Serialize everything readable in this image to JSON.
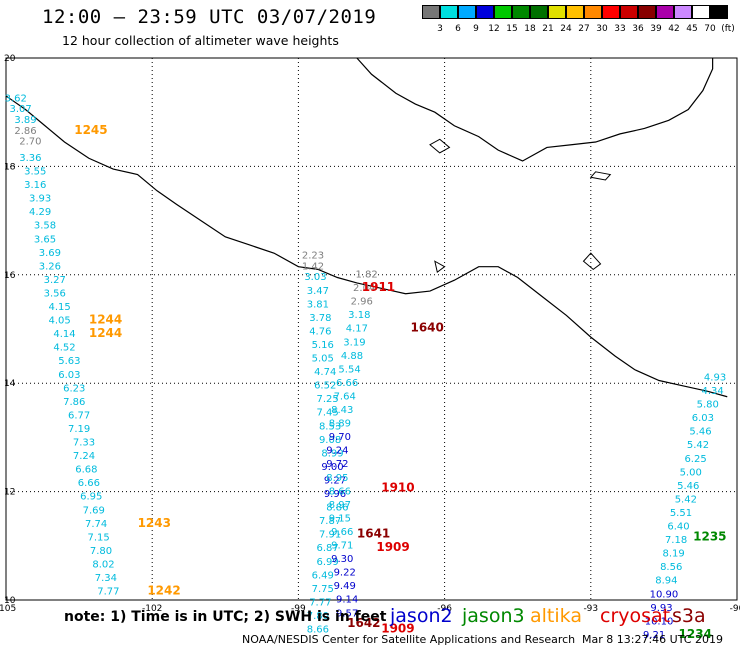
{
  "title": "12:00 — 23:59 UTC 03/07/2019",
  "subtitle": "12 hour collection of altimeter wave heights",
  "color_scale": {
    "labels": [
      "3",
      "6",
      "9",
      "12",
      "15",
      "18",
      "21",
      "24",
      "27",
      "30",
      "33",
      "36",
      "39",
      "42",
      "45",
      "70",
      "(ft)"
    ],
    "colors": [
      "#777777",
      "#00e0e0",
      "#00aaff",
      "#0000dd",
      "#00c800",
      "#008800",
      "#007000",
      "#e0e000",
      "#ffc000",
      "#ff8800",
      "#ff0000",
      "#cc0000",
      "#880000",
      "#aa00aa",
      "#cc88ff",
      "#ffffff",
      "#000000"
    ]
  },
  "note": "note:  1) Time is in UTC;  2) SWH is in feet",
  "legend": [
    {
      "label": "jason2",
      "color": "#0000cc"
    },
    {
      "label": "jason3",
      "color": "#008800"
    },
    {
      "label": "altika",
      "color": "#ff9900"
    },
    {
      "label": "cryosat",
      "color": "#dd0000"
    },
    {
      "label": "s3a",
      "color": "#8b0000"
    }
  ],
  "credit": "NOAA/NESDIS Center for Satellite Applications and Research",
  "credit_time": "Mar  8 13:27:46 UTC 2019",
  "map": {
    "lon_range": [
      -105,
      -90
    ],
    "lat_range": [
      10,
      20
    ],
    "lon_ticks": [
      "-105",
      "-102",
      "-99",
      "-96",
      "-93",
      "-90"
    ],
    "lat_ticks": [
      "20",
      "18",
      "16",
      "14",
      "12",
      "10"
    ],
    "colors": {
      "sky": "#00bbdd",
      "gray": "#808080",
      "blue": "#0000cc",
      "orange": "#ff9900",
      "red": "#dd0000",
      "darkred": "#8b0000",
      "green": "#008800"
    },
    "observations": [
      {
        "lon": -104.8,
        "lat": 19.2,
        "v": "3.62",
        "c": "sky"
      },
      {
        "lon": -104.7,
        "lat": 19.0,
        "v": "3.07",
        "c": "sky"
      },
      {
        "lon": -104.6,
        "lat": 18.8,
        "v": "3.89",
        "c": "sky"
      },
      {
        "lon": -104.6,
        "lat": 18.6,
        "v": "2.86",
        "c": "gray"
      },
      {
        "lon": -104.5,
        "lat": 18.4,
        "v": "2.70",
        "c": "gray"
      },
      {
        "lon": -104.5,
        "lat": 18.1,
        "v": "3.36",
        "c": "sky"
      },
      {
        "lon": -104.4,
        "lat": 17.85,
        "v": "3.55",
        "c": "sky"
      },
      {
        "lon": -104.4,
        "lat": 17.6,
        "v": "3.16",
        "c": "sky"
      },
      {
        "lon": -104.3,
        "lat": 17.35,
        "v": "3.93",
        "c": "sky"
      },
      {
        "lon": -104.3,
        "lat": 17.1,
        "v": "4.29",
        "c": "sky"
      },
      {
        "lon": -104.2,
        "lat": 16.85,
        "v": "3.58",
        "c": "sky"
      },
      {
        "lon": -104.2,
        "lat": 16.6,
        "v": "3.65",
        "c": "sky"
      },
      {
        "lon": -104.1,
        "lat": 16.35,
        "v": "3.69",
        "c": "sky"
      },
      {
        "lon": -104.1,
        "lat": 16.1,
        "v": "3.26",
        "c": "sky"
      },
      {
        "lon": -104.0,
        "lat": 15.85,
        "v": "3.27",
        "c": "sky"
      },
      {
        "lon": -104.0,
        "lat": 15.6,
        "v": "3.56",
        "c": "sky"
      },
      {
        "lon": -103.9,
        "lat": 15.35,
        "v": "4.15",
        "c": "sky"
      },
      {
        "lon": -103.9,
        "lat": 15.1,
        "v": "4.05",
        "c": "sky"
      },
      {
        "lon": -103.8,
        "lat": 14.85,
        "v": "4.14",
        "c": "sky"
      },
      {
        "lon": -103.8,
        "lat": 14.6,
        "v": "4.52",
        "c": "sky"
      },
      {
        "lon": -103.7,
        "lat": 14.35,
        "v": "5.63",
        "c": "sky"
      },
      {
        "lon": -103.7,
        "lat": 14.1,
        "v": "6.03",
        "c": "sky"
      },
      {
        "lon": -103.6,
        "lat": 13.85,
        "v": "6.23",
        "c": "sky"
      },
      {
        "lon": -103.6,
        "lat": 13.6,
        "v": "7.86",
        "c": "sky"
      },
      {
        "lon": -103.5,
        "lat": 13.35,
        "v": "6.77",
        "c": "sky"
      },
      {
        "lon": -103.5,
        "lat": 13.1,
        "v": "7.19",
        "c": "sky"
      },
      {
        "lon": -103.4,
        "lat": 12.85,
        "v": "7.33",
        "c": "sky"
      },
      {
        "lon": -103.4,
        "lat": 12.6,
        "v": "7.24",
        "c": "sky"
      },
      {
        "lon": -103.35,
        "lat": 12.35,
        "v": "6.68",
        "c": "sky"
      },
      {
        "lon": -103.3,
        "lat": 12.1,
        "v": "6.66",
        "c": "sky"
      },
      {
        "lon": -103.25,
        "lat": 11.85,
        "v": "6.95",
        "c": "sky"
      },
      {
        "lon": -103.2,
        "lat": 11.6,
        "v": "7.69",
        "c": "sky"
      },
      {
        "lon": -103.15,
        "lat": 11.35,
        "v": "7.74",
        "c": "sky"
      },
      {
        "lon": -103.1,
        "lat": 11.1,
        "v": "7.15",
        "c": "sky"
      },
      {
        "lon": -103.05,
        "lat": 10.85,
        "v": "7.80",
        "c": "sky"
      },
      {
        "lon": -103.0,
        "lat": 10.6,
        "v": "8.02",
        "c": "sky"
      },
      {
        "lon": -102.95,
        "lat": 10.35,
        "v": "7.34",
        "c": "sky"
      },
      {
        "lon": -102.9,
        "lat": 10.1,
        "v": "7.77",
        "c": "sky"
      },
      {
        "lon": -98.7,
        "lat": 16.3,
        "v": "2.23",
        "c": "gray"
      },
      {
        "lon": -98.7,
        "lat": 16.1,
        "v": "1.42",
        "c": "gray"
      },
      {
        "lon": -98.65,
        "lat": 15.9,
        "v": "3.03",
        "c": "sky"
      },
      {
        "lon": -98.6,
        "lat": 15.65,
        "v": "3.47",
        "c": "sky"
      },
      {
        "lon": -98.6,
        "lat": 15.4,
        "v": "3.81",
        "c": "sky"
      },
      {
        "lon": -98.55,
        "lat": 15.15,
        "v": "3.78",
        "c": "sky"
      },
      {
        "lon": -98.55,
        "lat": 14.9,
        "v": "4.76",
        "c": "sky"
      },
      {
        "lon": -98.5,
        "lat": 14.65,
        "v": "5.16",
        "c": "sky"
      },
      {
        "lon": -98.5,
        "lat": 14.4,
        "v": "5.05",
        "c": "sky"
      },
      {
        "lon": -98.45,
        "lat": 14.15,
        "v": "4.74",
        "c": "sky"
      },
      {
        "lon": -98.45,
        "lat": 13.9,
        "v": "6.52",
        "c": "sky"
      },
      {
        "lon": -98.4,
        "lat": 13.65,
        "v": "7.25",
        "c": "sky"
      },
      {
        "lon": -98.4,
        "lat": 13.4,
        "v": "7.45",
        "c": "sky"
      },
      {
        "lon": -98.35,
        "lat": 13.15,
        "v": "8.53",
        "c": "sky"
      },
      {
        "lon": -98.35,
        "lat": 12.9,
        "v": "9.08",
        "c": "sky"
      },
      {
        "lon": -98.3,
        "lat": 12.65,
        "v": "8.99",
        "c": "sky"
      },
      {
        "lon": -98.3,
        "lat": 12.4,
        "v": "9.00",
        "c": "blue"
      },
      {
        "lon": -98.25,
        "lat": 12.15,
        "v": "9.27",
        "c": "blue"
      },
      {
        "lon": -98.25,
        "lat": 11.9,
        "v": "9.96",
        "c": "blue"
      },
      {
        "lon": -98.2,
        "lat": 11.65,
        "v": "8.86",
        "c": "sky"
      },
      {
        "lon": -98.35,
        "lat": 11.4,
        "v": "7.87",
        "c": "sky"
      },
      {
        "lon": -98.35,
        "lat": 11.15,
        "v": "7.91",
        "c": "sky"
      },
      {
        "lon": -98.4,
        "lat": 10.9,
        "v": "6.87",
        "c": "sky"
      },
      {
        "lon": -98.4,
        "lat": 10.65,
        "v": "6.99",
        "c": "sky"
      },
      {
        "lon": -98.5,
        "lat": 10.4,
        "v": "6.49",
        "c": "sky"
      },
      {
        "lon": -98.5,
        "lat": 10.15,
        "v": "7.75",
        "c": "sky"
      },
      {
        "lon": -98.55,
        "lat": 9.9,
        "v": "7.77",
        "c": "sky"
      },
      {
        "lon": -98.6,
        "lat": 9.65,
        "v": "7.80",
        "c": "sky"
      },
      {
        "lon": -98.6,
        "lat": 9.4,
        "v": "8.66",
        "c": "sky"
      },
      {
        "lon": -97.6,
        "lat": 15.95,
        "v": "1.82",
        "c": "gray"
      },
      {
        "lon": -97.65,
        "lat": 15.7,
        "v": "2.04",
        "c": "gray"
      },
      {
        "lon": -97.7,
        "lat": 15.45,
        "v": "2.96",
        "c": "gray"
      },
      {
        "lon": -97.75,
        "lat": 15.2,
        "v": "3.18",
        "c": "sky"
      },
      {
        "lon": -97.8,
        "lat": 14.95,
        "v": "4.17",
        "c": "sky"
      },
      {
        "lon": -97.85,
        "lat": 14.7,
        "v": "3.19",
        "c": "sky"
      },
      {
        "lon": -97.9,
        "lat": 14.45,
        "v": "4.88",
        "c": "sky"
      },
      {
        "lon": -97.95,
        "lat": 14.2,
        "v": "5.54",
        "c": "sky"
      },
      {
        "lon": -98.0,
        "lat": 13.95,
        "v": "6.66",
        "c": "sky"
      },
      {
        "lon": -98.05,
        "lat": 13.7,
        "v": "7.64",
        "c": "sky"
      },
      {
        "lon": -98.1,
        "lat": 13.45,
        "v": "8.43",
        "c": "sky"
      },
      {
        "lon": -98.15,
        "lat": 13.2,
        "v": "8.89",
        "c": "sky"
      },
      {
        "lon": -98.15,
        "lat": 12.95,
        "v": "9.70",
        "c": "blue"
      },
      {
        "lon": -98.2,
        "lat": 12.7,
        "v": "9.24",
        "c": "blue"
      },
      {
        "lon": -98.2,
        "lat": 12.45,
        "v": "9.72",
        "c": "blue"
      },
      {
        "lon": -98.2,
        "lat": 12.2,
        "v": "8.95",
        "c": "sky"
      },
      {
        "lon": -98.15,
        "lat": 11.95,
        "v": "8.66",
        "c": "sky"
      },
      {
        "lon": -98.15,
        "lat": 11.7,
        "v": "8.97",
        "c": "sky"
      },
      {
        "lon": -98.15,
        "lat": 11.45,
        "v": "9.15",
        "c": "sky"
      },
      {
        "lon": -98.1,
        "lat": 11.2,
        "v": "9.66",
        "c": "sky"
      },
      {
        "lon": -98.1,
        "lat": 10.95,
        "v": "9.71",
        "c": "sky"
      },
      {
        "lon": -98.1,
        "lat": 10.7,
        "v": "9.30",
        "c": "blue"
      },
      {
        "lon": -98.05,
        "lat": 10.45,
        "v": "9.22",
        "c": "blue"
      },
      {
        "lon": -98.05,
        "lat": 10.2,
        "v": "9.49",
        "c": "blue"
      },
      {
        "lon": -98.0,
        "lat": 9.95,
        "v": "9.14",
        "c": "blue"
      },
      {
        "lon": -98.0,
        "lat": 9.7,
        "v": "9.57",
        "c": "blue"
      },
      {
        "lon": -90.45,
        "lat": 14.05,
        "v": "4.93",
        "c": "sky"
      },
      {
        "lon": -90.5,
        "lat": 13.8,
        "v": "4.34",
        "c": "sky"
      },
      {
        "lon": -90.6,
        "lat": 13.55,
        "v": "5.80",
        "c": "sky"
      },
      {
        "lon": -90.7,
        "lat": 13.3,
        "v": "6.03",
        "c": "sky"
      },
      {
        "lon": -90.75,
        "lat": 13.05,
        "v": "5.46",
        "c": "sky"
      },
      {
        "lon": -90.8,
        "lat": 12.8,
        "v": "5.42",
        "c": "sky"
      },
      {
        "lon": -90.85,
        "lat": 12.55,
        "v": "6.25",
        "c": "sky"
      },
      {
        "lon": -90.95,
        "lat": 12.3,
        "v": "5.00",
        "c": "sky"
      },
      {
        "lon": -91.0,
        "lat": 12.05,
        "v": "5.46",
        "c": "sky"
      },
      {
        "lon": -91.05,
        "lat": 11.8,
        "v": "5.42",
        "c": "sky"
      },
      {
        "lon": -91.15,
        "lat": 11.55,
        "v": "5.51",
        "c": "sky"
      },
      {
        "lon": -91.2,
        "lat": 11.3,
        "v": "6.40",
        "c": "sky"
      },
      {
        "lon": -91.25,
        "lat": 11.05,
        "v": "7.18",
        "c": "sky"
      },
      {
        "lon": -91.3,
        "lat": 10.8,
        "v": "8.19",
        "c": "sky"
      },
      {
        "lon": -91.35,
        "lat": 10.55,
        "v": "8.56",
        "c": "sky"
      },
      {
        "lon": -91.45,
        "lat": 10.3,
        "v": "8.94",
        "c": "sky"
      },
      {
        "lon": -91.5,
        "lat": 10.05,
        "v": "10.90",
        "c": "blue"
      },
      {
        "lon": -91.55,
        "lat": 9.8,
        "v": "9.93",
        "c": "blue"
      },
      {
        "lon": -91.6,
        "lat": 9.55,
        "v": "10.10",
        "c": "blue"
      },
      {
        "lon": -91.7,
        "lat": 9.3,
        "v": "9.21",
        "c": "blue"
      }
    ],
    "times": [
      {
        "lon": -103.6,
        "lat": 18.6,
        "v": "1245",
        "c": "orange"
      },
      {
        "lon": -103.3,
        "lat": 15.1,
        "v": "1244",
        "c": "orange"
      },
      {
        "lon": -103.3,
        "lat": 14.85,
        "v": "1244",
        "c": "orange"
      },
      {
        "lon": -102.3,
        "lat": 11.35,
        "v": "1243",
        "c": "orange"
      },
      {
        "lon": -102.1,
        "lat": 10.1,
        "v": "1242",
        "c": "orange"
      },
      {
        "lon": -97.7,
        "lat": 15.7,
        "v": "1911",
        "c": "red"
      },
      {
        "lon": -96.7,
        "lat": 14.95,
        "v": "1640",
        "c": "darkred"
      },
      {
        "lon": -97.3,
        "lat": 12.0,
        "v": "1910",
        "c": "red"
      },
      {
        "lon": -97.8,
        "lat": 11.15,
        "v": "1641",
        "c": "darkred"
      },
      {
        "lon": -97.4,
        "lat": 10.9,
        "v": "1909",
        "c": "red"
      },
      {
        "lon": -98.0,
        "lat": 9.5,
        "v": "1642",
        "c": "darkred"
      },
      {
        "lon": -97.3,
        "lat": 9.4,
        "v": "1909",
        "c": "red"
      },
      {
        "lon": -90.9,
        "lat": 11.1,
        "v": "1235",
        "c": "green"
      },
      {
        "lon": -91.2,
        "lat": 9.3,
        "v": "1234",
        "c": "green"
      }
    ]
  }
}
